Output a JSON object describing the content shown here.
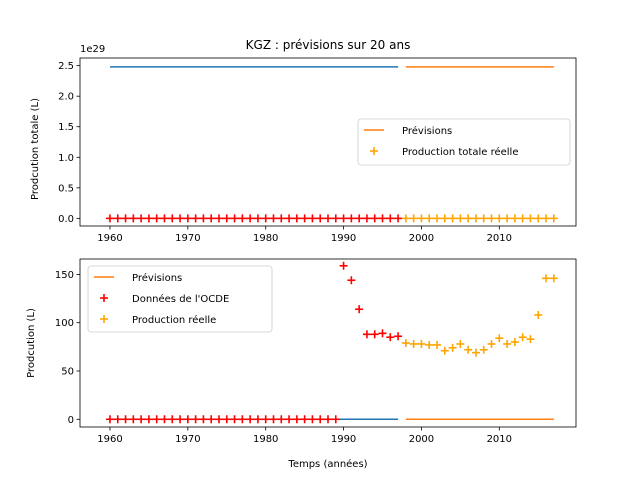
{
  "chart_data": [
    {
      "type": "line",
      "title": "KGZ : prévisions sur 20 ans",
      "ylabel": "Prodcution totale (L)",
      "xlabel": "",
      "scale_text": "1e29",
      "xlim": [
        1956.15,
        2019.85
      ],
      "ylim": [
        -0.125,
        2.625
      ],
      "xticks": [
        1960,
        1970,
        1980,
        1990,
        2000,
        2010
      ],
      "yticks": [
        0.0,
        0.5,
        1.0,
        1.5,
        2.0,
        2.5
      ],
      "ytick_labels": [
        "0.0",
        "0.5",
        "1.0",
        "1.5",
        "2.0",
        "2.5"
      ],
      "legend_position": "center-right",
      "series": [
        {
          "key": "hist_line",
          "kind": "line",
          "color": "#1f77b4",
          "x": [
            1960,
            1997
          ],
          "y": [
            2.48,
            2.48
          ]
        },
        {
          "key": "forecast",
          "kind": "line",
          "name": "Prévisions",
          "color": "#ff7f0e",
          "x": [
            1998,
            2017
          ],
          "y": [
            2.48,
            2.48
          ]
        },
        {
          "key": "oecd",
          "kind": "scatter",
          "color": "#ff0000",
          "x": [
            1960,
            1961,
            1962,
            1963,
            1964,
            1965,
            1966,
            1967,
            1968,
            1969,
            1970,
            1971,
            1972,
            1973,
            1974,
            1975,
            1976,
            1977,
            1978,
            1979,
            1980,
            1981,
            1982,
            1983,
            1984,
            1985,
            1986,
            1987,
            1988,
            1989,
            1990,
            1991,
            1992,
            1993,
            1994,
            1995,
            1996,
            1997
          ],
          "y": [
            0,
            0,
            0,
            0,
            0,
            0,
            0,
            0,
            0,
            0,
            0,
            0,
            0,
            0,
            0,
            0,
            0,
            0,
            0,
            0,
            0,
            0,
            0,
            0,
            0,
            0,
            0,
            0,
            0,
            0,
            0,
            0,
            0,
            0,
            0,
            0,
            0,
            0
          ]
        },
        {
          "key": "real",
          "kind": "scatter",
          "name": "Production totale réelle",
          "color": "#ffa500",
          "x": [
            1998,
            1999,
            2000,
            2001,
            2002,
            2003,
            2004,
            2005,
            2006,
            2007,
            2008,
            2009,
            2010,
            2011,
            2012,
            2013,
            2014,
            2015,
            2016,
            2017
          ],
          "y": [
            0,
            0,
            0,
            0,
            0,
            0,
            0,
            0,
            0,
            0,
            0,
            0,
            0,
            0,
            0,
            0,
            0,
            0,
            0,
            0
          ]
        }
      ],
      "legend": [
        {
          "kind": "line",
          "label": "Prévisions",
          "color": "#ff7f0e"
        },
        {
          "kind": "marker",
          "label": "Production totale réelle",
          "color": "#ffa500"
        }
      ]
    },
    {
      "type": "line",
      "title": "",
      "ylabel": "Prodcution (L)",
      "xlabel": "Temps (années)",
      "scale_text": "",
      "xlim": [
        1956.15,
        2019.85
      ],
      "ylim": [
        -8,
        166
      ],
      "xticks": [
        1960,
        1970,
        1980,
        1990,
        2000,
        2010
      ],
      "yticks": [
        0,
        50,
        100,
        150
      ],
      "ytick_labels": [
        "0",
        "50",
        "100",
        "150"
      ],
      "legend_position": "upper-left",
      "series": [
        {
          "key": "hist_line",
          "kind": "line",
          "color": "#1f77b4",
          "x": [
            1960,
            1997
          ],
          "y": [
            0,
            0
          ]
        },
        {
          "key": "forecast",
          "kind": "line",
          "name": "Prévisions",
          "color": "#ff7f0e",
          "x": [
            1998,
            2017
          ],
          "y": [
            0,
            0
          ]
        },
        {
          "key": "oecd",
          "kind": "scatter",
          "name": "Données de l'OCDE",
          "color": "#ff0000",
          "x": [
            1960,
            1961,
            1962,
            1963,
            1964,
            1965,
            1966,
            1967,
            1968,
            1969,
            1970,
            1971,
            1972,
            1973,
            1974,
            1975,
            1976,
            1977,
            1978,
            1979,
            1980,
            1981,
            1982,
            1983,
            1984,
            1985,
            1986,
            1987,
            1988,
            1989,
            1990,
            1991,
            1992,
            1993,
            1994,
            1995,
            1996,
            1997
          ],
          "y": [
            0,
            0,
            0,
            0,
            0,
            0,
            0,
            0,
            0,
            0,
            0,
            0,
            0,
            0,
            0,
            0,
            0,
            0,
            0,
            0,
            0,
            0,
            0,
            0,
            0,
            0,
            0,
            0,
            0,
            0,
            159,
            144,
            114,
            88,
            88,
            89,
            85,
            86
          ]
        },
        {
          "key": "real",
          "kind": "scatter",
          "name": "Production réelle",
          "color": "#ffa500",
          "x": [
            1998,
            1999,
            2000,
            2001,
            2002,
            2003,
            2004,
            2005,
            2006,
            2007,
            2008,
            2009,
            2010,
            2011,
            2012,
            2013,
            2014,
            2015,
            2016,
            2017
          ],
          "y": [
            79,
            78,
            78,
            77,
            77,
            71,
            74,
            78,
            72,
            69,
            72,
            78,
            84,
            78,
            80,
            85,
            83,
            108,
            146,
            146
          ]
        }
      ],
      "legend": [
        {
          "kind": "line",
          "label": "Prévisions",
          "color": "#ff7f0e"
        },
        {
          "kind": "marker",
          "label": "Données de l'OCDE",
          "color": "#ff0000"
        },
        {
          "kind": "marker",
          "label": "Production réelle",
          "color": "#ffa500"
        }
      ]
    }
  ]
}
